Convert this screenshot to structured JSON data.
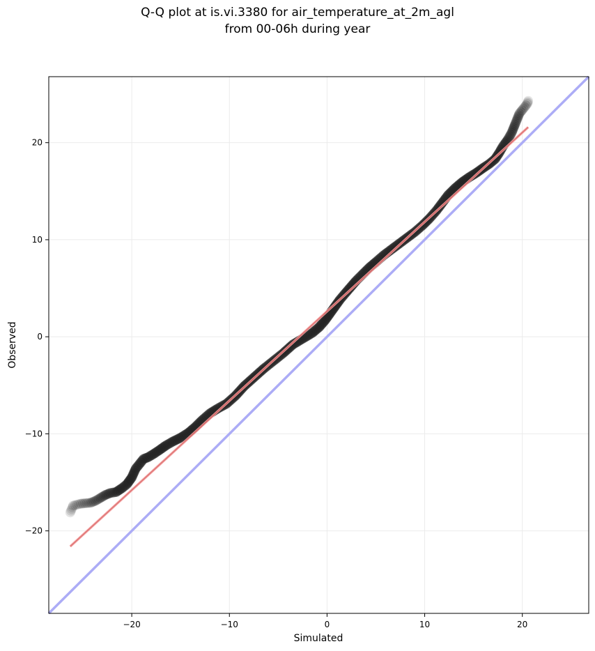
{
  "title_line1": "Q-Q plot at is.vi.3380 for air_temperature_at_2m_agl",
  "title_line2": "from 00-06h during year",
  "chart_data": {
    "type": "scatter",
    "title": "Q-Q plot at is.vi.3380 for air_temperature_at_2m_agl from 00-06h during year",
    "xlabel": "Simulated",
    "ylabel": "Observed",
    "xlim": [
      -28.5,
      26.8
    ],
    "ylim": [
      -28.5,
      26.8
    ],
    "xticks": [
      -20,
      -10,
      0,
      10,
      20
    ],
    "yticks": [
      -20,
      -10,
      0,
      10,
      20
    ],
    "xtick_labels": [
      "−20",
      "−10",
      "0",
      "10",
      "20"
    ],
    "ytick_labels": [
      "−20",
      "−10",
      "0",
      "10",
      "20"
    ],
    "grid": true,
    "colors": {
      "points": "#222222",
      "fit_line": "#f5a0a0",
      "identity_line": "#a8a8f5"
    },
    "series": [
      {
        "type": "line",
        "points": [
          [
            -26.3,
            -21.6
          ],
          [
            20.6,
            21.6
          ]
        ]
      },
      {
        "type": "line",
        "points": [
          [
            -28.5,
            -28.5
          ],
          [
            26.8,
            26.8
          ]
        ]
      },
      {
        "type": "scatter",
        "points": [
          [
            -26.3,
            -18.1
          ],
          [
            -26.0,
            -17.4
          ],
          [
            -25.2,
            -17.2
          ],
          [
            -24.2,
            -17.1
          ],
          [
            -23.7,
            -16.9
          ],
          [
            -23.2,
            -16.6
          ],
          [
            -22.7,
            -16.3
          ],
          [
            -22.2,
            -16.1
          ],
          [
            -21.6,
            -16.0
          ],
          [
            -21.0,
            -15.6
          ],
          [
            -20.5,
            -15.2
          ],
          [
            -20.0,
            -14.5
          ],
          [
            -19.6,
            -13.6
          ],
          [
            -19.2,
            -13.1
          ],
          [
            -18.8,
            -12.6
          ],
          [
            -18.3,
            -12.4
          ],
          [
            -17.8,
            -12.1
          ],
          [
            -17.2,
            -11.7
          ],
          [
            -16.5,
            -11.2
          ],
          [
            -15.8,
            -10.8
          ],
          [
            -15.0,
            -10.4
          ],
          [
            -14.2,
            -9.9
          ],
          [
            -13.5,
            -9.3
          ],
          [
            -12.8,
            -8.6
          ],
          [
            -12.0,
            -7.9
          ],
          [
            -11.2,
            -7.4
          ],
          [
            -10.3,
            -6.9
          ],
          [
            -9.4,
            -6.1
          ],
          [
            -8.5,
            -5.1
          ],
          [
            -7.5,
            -4.2
          ],
          [
            -6.5,
            -3.3
          ],
          [
            -5.5,
            -2.5
          ],
          [
            -4.5,
            -1.7
          ],
          [
            -3.5,
            -0.8
          ],
          [
            -2.5,
            -0.2
          ],
          [
            -1.5,
            0.4
          ],
          [
            -0.8,
            1.0
          ],
          [
            -0.2,
            1.7
          ],
          [
            0.3,
            2.4
          ],
          [
            0.8,
            3.1
          ],
          [
            1.3,
            3.8
          ],
          [
            1.8,
            4.4
          ],
          [
            2.4,
            5.1
          ],
          [
            3.0,
            5.8
          ],
          [
            3.6,
            6.4
          ],
          [
            4.3,
            7.1
          ],
          [
            5.0,
            7.7
          ],
          [
            5.8,
            8.4
          ],
          [
            6.6,
            9.0
          ],
          [
            7.4,
            9.6
          ],
          [
            8.2,
            10.2
          ],
          [
            9.0,
            10.8
          ],
          [
            9.8,
            11.5
          ],
          [
            10.5,
            12.2
          ],
          [
            11.2,
            13.0
          ],
          [
            11.8,
            13.8
          ],
          [
            12.4,
            14.6
          ],
          [
            13.1,
            15.3
          ],
          [
            13.8,
            15.9
          ],
          [
            14.5,
            16.4
          ],
          [
            15.3,
            16.9
          ],
          [
            16.0,
            17.4
          ],
          [
            16.6,
            17.8
          ],
          [
            17.2,
            18.3
          ],
          [
            17.6,
            18.9
          ],
          [
            18.0,
            19.6
          ],
          [
            18.5,
            20.3
          ],
          [
            18.9,
            21.0
          ],
          [
            19.3,
            22.0
          ],
          [
            19.7,
            23.0
          ],
          [
            20.1,
            23.5
          ],
          [
            20.5,
            24.0
          ],
          [
            20.6,
            24.3
          ]
        ]
      }
    ]
  }
}
